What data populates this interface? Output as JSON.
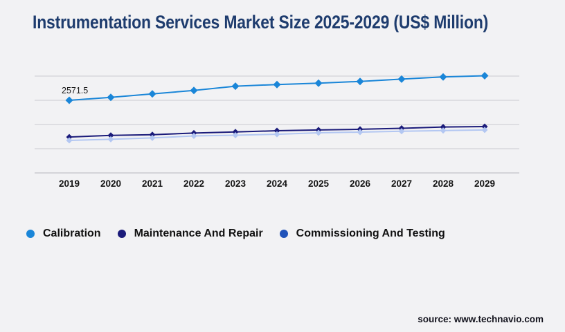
{
  "page": {
    "title": "Instrumentation Services Market Size 2025-2029 (US$ Million)",
    "source": "source: www.technavio.com",
    "colors": {
      "background": "#f2f2f4",
      "title": "#1e3c6e",
      "gridline": "#d3d3d7",
      "axis_line": "#c3c3c7"
    }
  },
  "chart_data": {
    "type": "line",
    "title": "Instrumentation Services Market Size 2025-2029 (US$ Million)",
    "xlabel": "",
    "ylabel": "US$ Million",
    "x": [
      "2019",
      "2020",
      "2021",
      "2022",
      "2023",
      "2024",
      "2025",
      "2026",
      "2027",
      "2028",
      "2029"
    ],
    "series": [
      {
        "name": "Calibration",
        "color": "#1a86d8",
        "marker": "diamond",
        "values": [
          2571.5,
          2675,
          2800,
          2920,
          3070,
          3130,
          3180,
          3240,
          3320,
          3400,
          3440
        ]
      },
      {
        "name": "Maintenance And Repair",
        "color": "#1b1b7a",
        "marker": "diamond",
        "values": [
          1270,
          1330,
          1355,
          1410,
          1450,
          1495,
          1520,
          1545,
          1580,
          1625,
          1640
        ]
      },
      {
        "name": "Commissioning And Testing",
        "color": "#b3c7f2",
        "marker": "diamond",
        "values": [
          1150,
          1190,
          1240,
          1310,
          1335,
          1370,
          1420,
          1445,
          1475,
          1500,
          1520
        ]
      }
    ],
    "annotation": {
      "text": "2571.5",
      "series": 0,
      "index": 0
    },
    "ylim": [
      0,
      3428.7
    ],
    "gridlines": [
      0,
      857.2,
      1714.3,
      2571.5,
      3428.7
    ],
    "grid": true,
    "y_axis_labels_shown": false,
    "legend_position": "bottom"
  },
  "legend": {
    "items": [
      {
        "label": "Calibration",
        "color": "#1a86d8"
      },
      {
        "label": "Maintenance And Repair",
        "color": "#1b1b7a"
      },
      {
        "label": "Commissioning And Testing",
        "color": "#2053ba"
      }
    ]
  }
}
